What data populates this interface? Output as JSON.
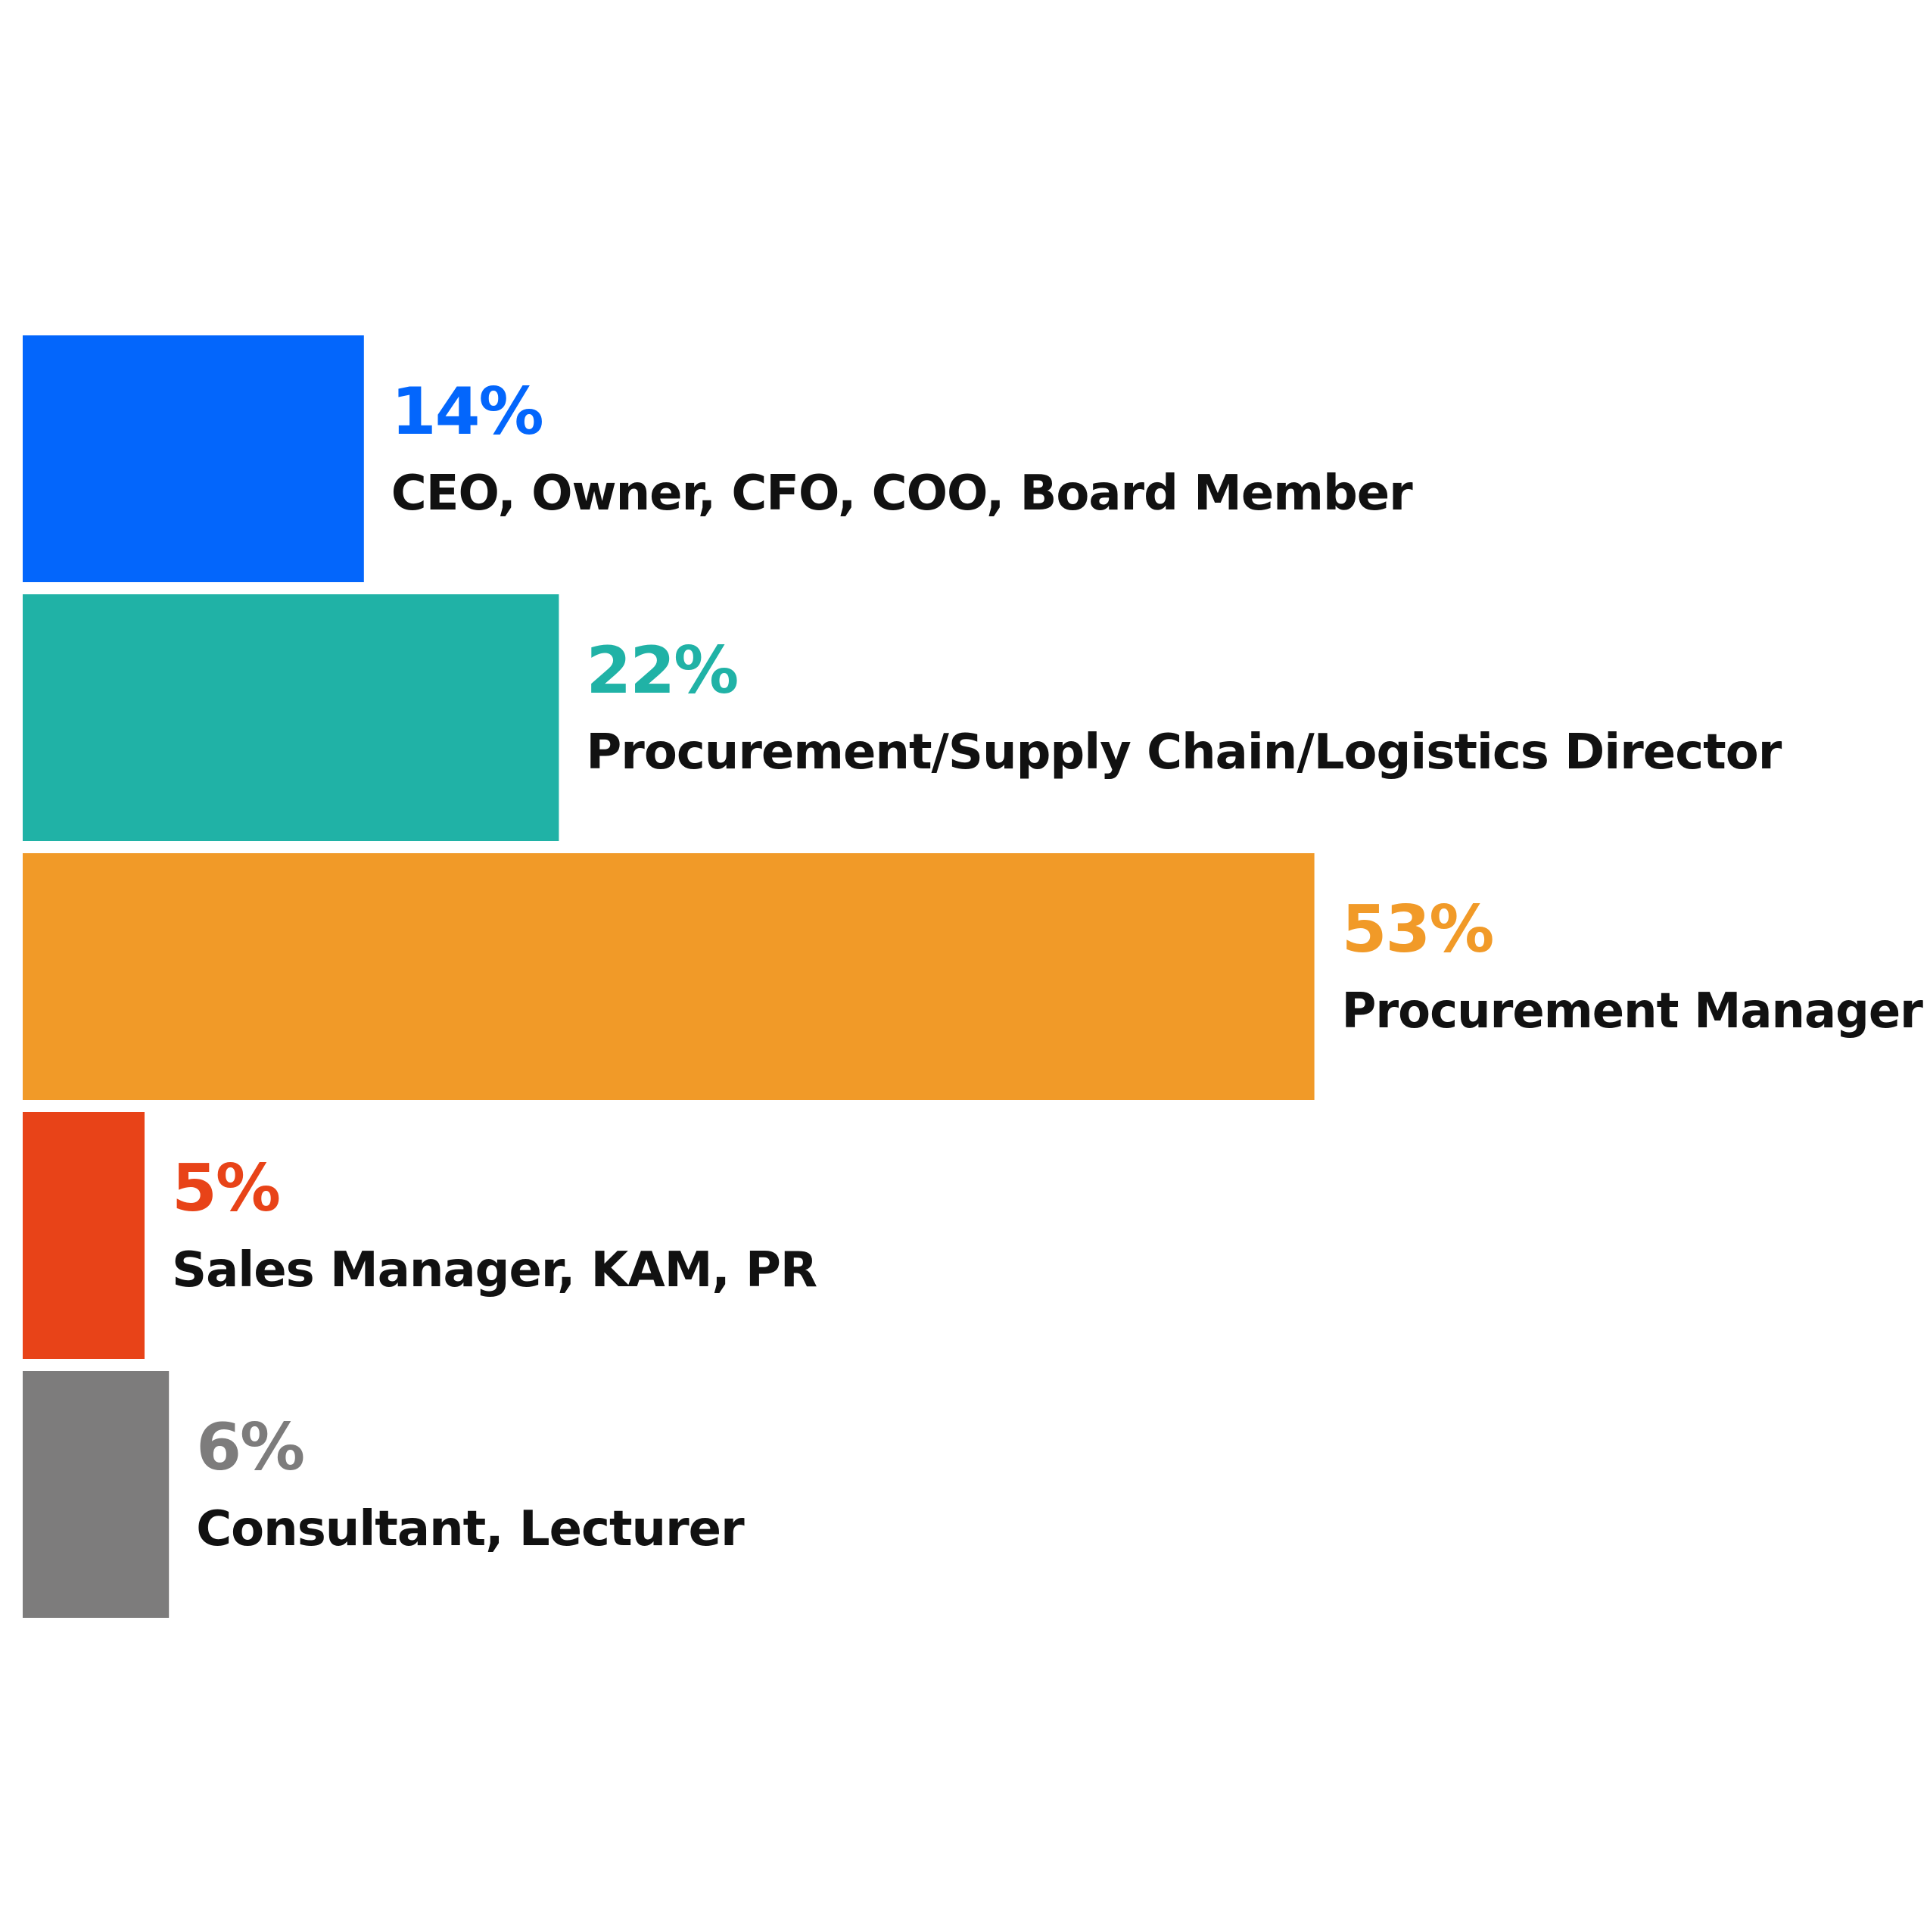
{
  "chart_data": {
    "type": "bar",
    "orientation": "horizontal",
    "title": "",
    "xlabel": "",
    "ylabel": "",
    "unit": "%",
    "grid": false,
    "legend": "none",
    "categories": [
      "CEO, Owner, CFO, COO, Board Member",
      "Procurement/Supply Chain/Logistics Director",
      "Procurement Manager",
      "Sales Manager, KAM, PR",
      "Consultant, Lecturer"
    ],
    "values": [
      14,
      22,
      53,
      5,
      6
    ],
    "value_labels": [
      "14%",
      "22%",
      "53%",
      "5%",
      "6%"
    ],
    "colors": [
      "#0366fc",
      "#20b2a6",
      "#f19a28",
      "#e84318",
      "#7d7c7c"
    ]
  }
}
